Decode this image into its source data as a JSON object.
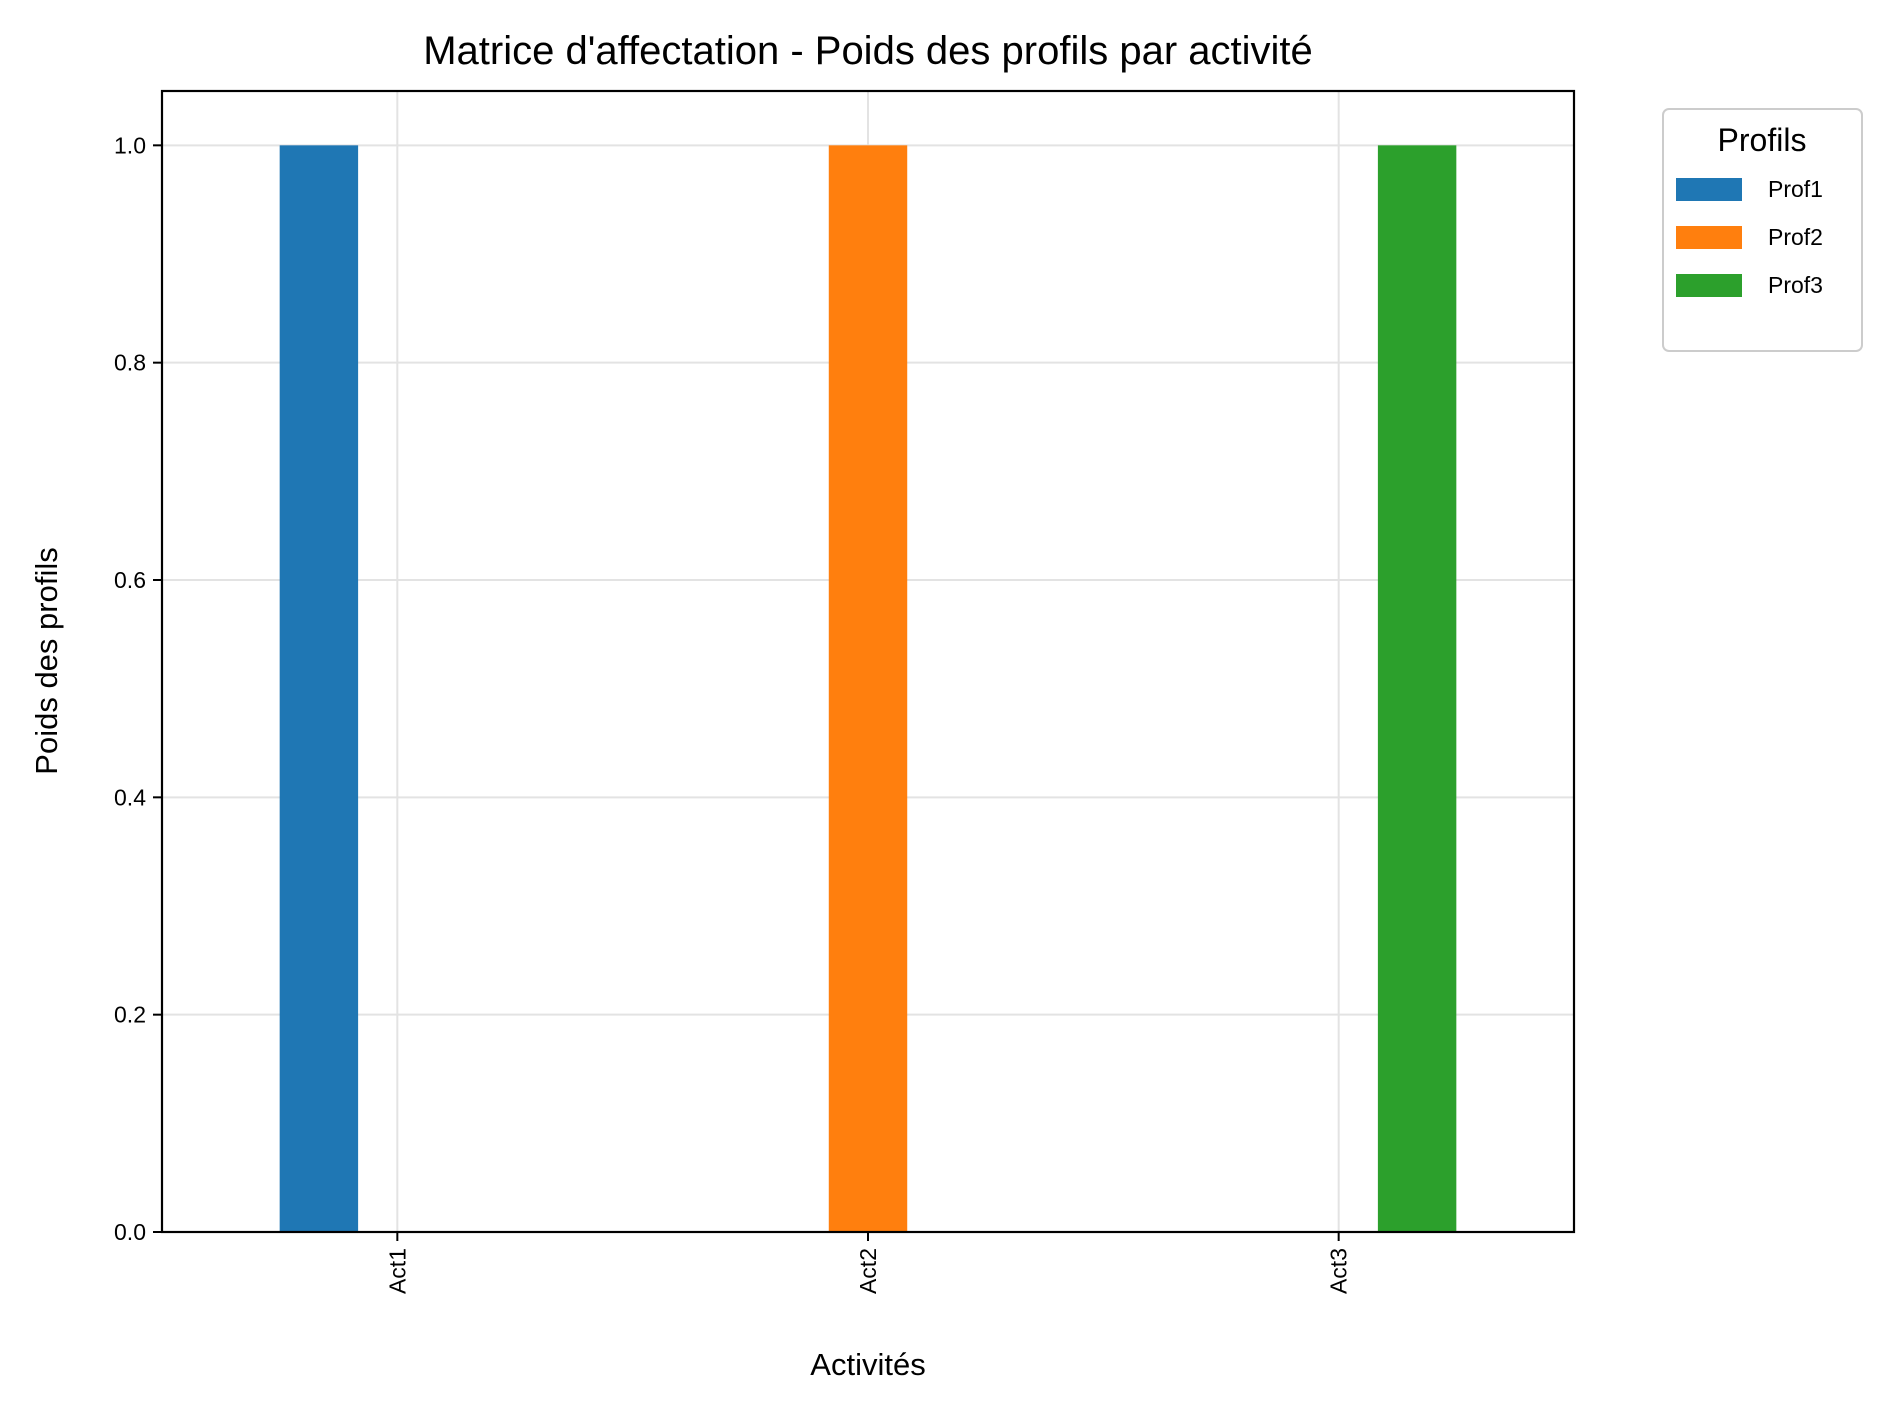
{
  "chart_data": {
    "type": "bar",
    "title": "Matrice d'affectation - Poids des profils par activité",
    "xlabel": "Activités",
    "ylabel": "Poids des profils",
    "categories": [
      "Act1",
      "Act2",
      "Act3"
    ],
    "series": [
      {
        "name": "Prof1",
        "color": "#1f77b4",
        "values": [
          1.0,
          0.0,
          0.0
        ]
      },
      {
        "name": "Prof2",
        "color": "#ff7f0e",
        "values": [
          0.0,
          1.0,
          0.0
        ]
      },
      {
        "name": "Prof3",
        "color": "#2ca02c",
        "values": [
          0.0,
          0.0,
          1.0
        ]
      }
    ],
    "ylim": [
      0,
      1.05
    ],
    "yticks": [
      "0.0",
      "0.2",
      "0.4",
      "0.6",
      "0.8",
      "1.0"
    ],
    "grid": true,
    "legend": {
      "title": "Profils",
      "placement": "outside top-right"
    }
  }
}
